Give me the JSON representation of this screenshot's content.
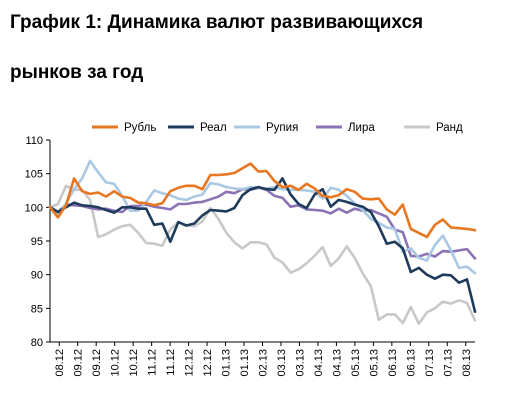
{
  "title_line1": "График 1: Динамика валют развивающихся",
  "title_line2": "рынков за год",
  "chart_data": {
    "type": "line",
    "title": "График 1: Динамика валют развивающихся рынков за год",
    "xlabel": "",
    "ylabel": "",
    "ylim": [
      80,
      110
    ],
    "yticks": [
      80,
      85,
      90,
      95,
      100,
      105,
      110
    ],
    "grid": false,
    "legend": "top",
    "x_tick_labels": [
      "08.12",
      "09.12",
      "09.12",
      "10.12",
      "10.12",
      "11.12",
      "11.12",
      "12.12",
      "12.12",
      "01.13",
      "01.13",
      "02.13",
      "03.13",
      "03.13",
      "04.13",
      "04.13",
      "05.13",
      "05.13",
      "06.13",
      "06.13",
      "07.13",
      "07.13",
      "08.13"
    ],
    "series": [
      {
        "name": "Рубль",
        "color": "#e87722",
        "values": [
          100,
          98.5,
          100.3,
          104.3,
          102.4,
          102,
          102.2,
          101.6,
          102.4,
          101.6,
          101.4,
          100.7,
          100.6,
          100.3,
          100.6,
          102.4,
          102.9,
          103.2,
          103.2,
          102.7,
          104.8,
          104.8,
          104.9,
          105.1,
          105.8,
          106.5,
          105.3,
          105.4,
          103.9,
          103,
          103.2,
          102.6,
          103.5,
          102.8,
          101.7,
          101.5,
          101.8,
          102.7,
          102.3,
          101.3,
          101.2,
          101.3,
          99.7,
          98.9,
          100.4,
          96.8,
          96.2,
          95.6,
          97.4,
          98.2,
          97,
          96.9,
          96.8,
          96.6
        ]
      },
      {
        "name": "Реал",
        "color": "#1f3b5c",
        "values": [
          100,
          99.3,
          100,
          100.7,
          100.3,
          100.2,
          100,
          99.6,
          99.2,
          100,
          100,
          99.8,
          99.8,
          97.4,
          97.6,
          94.9,
          97.8,
          97.3,
          97.6,
          98.8,
          99.6,
          99.5,
          99.4,
          99.9,
          101.8,
          102.7,
          103,
          102.7,
          102.6,
          104.3,
          101.9,
          100.5,
          99.9,
          101.9,
          102.7,
          100.1,
          101.1,
          100.8,
          100.4,
          100.1,
          99.3,
          97.2,
          94.6,
          94.9,
          93.9,
          90.4,
          91,
          90,
          89.4,
          90,
          89.9,
          88.8,
          89.3,
          84.5
        ]
      },
      {
        "name": "Рупия",
        "color": "#a9c8e4",
        "values": [
          100,
          98.8,
          100.6,
          102.7,
          104.3,
          106.9,
          105.2,
          103.7,
          103.5,
          101.7,
          99.5,
          99.5,
          100.8,
          102.5,
          102.1,
          101.8,
          101.3,
          101.1,
          101.6,
          101.9,
          103.6,
          103.4,
          103,
          102.8,
          102.7,
          103,
          102.9,
          102.8,
          103,
          102.7,
          102.6,
          102.6,
          102.5,
          102.3,
          101.3,
          102.9,
          102.6,
          101.7,
          100.6,
          99.6,
          98.3,
          97.7,
          97,
          96.8,
          93.4,
          93.9,
          92.5,
          92.1,
          94.4,
          95.8,
          93.6,
          91,
          91.2,
          90.2
        ]
      },
      {
        "name": "Лира",
        "color": "#8c73b5",
        "values": [
          100,
          99.3,
          100.4,
          100.3,
          100.2,
          99.9,
          99.7,
          99.8,
          99.5,
          99.3,
          100.2,
          100.2,
          100.4,
          100.1,
          99.9,
          99.7,
          100.5,
          100.5,
          100.7,
          100.8,
          101.2,
          101.6,
          102.3,
          102.1,
          102.7,
          102.6,
          102.9,
          102.6,
          101.7,
          101.4,
          100.1,
          100.3,
          99.7,
          99.6,
          99.5,
          99.1,
          99.8,
          99.2,
          99.8,
          99.5,
          99.6,
          99.1,
          98.6,
          96.7,
          96.3,
          92.8,
          92.7,
          93.1,
          92.7,
          93.5,
          93.4,
          93.6,
          93.8,
          92.4
        ]
      },
      {
        "name": "Ранд",
        "color": "#c8c8c8",
        "values": [
          100,
          100.5,
          103.2,
          102.6,
          102.6,
          101.1,
          95.6,
          96,
          96.7,
          97.2,
          97.4,
          96.2,
          94.7,
          94.6,
          94.3,
          96.7,
          97.8,
          97.3,
          97.2,
          97.9,
          99.9,
          98.3,
          96.2,
          94.8,
          93.9,
          94.8,
          94.8,
          94.5,
          92.5,
          91.8,
          90.3,
          90.8,
          91.7,
          92.8,
          94.1,
          91.3,
          92.4,
          94.2,
          92.5,
          90.2,
          88.3,
          83.3,
          84.1,
          84.1,
          82.8,
          85.2,
          82.7,
          84.4,
          85,
          86,
          85.7,
          86.2,
          85.8,
          83.2
        ]
      }
    ]
  }
}
